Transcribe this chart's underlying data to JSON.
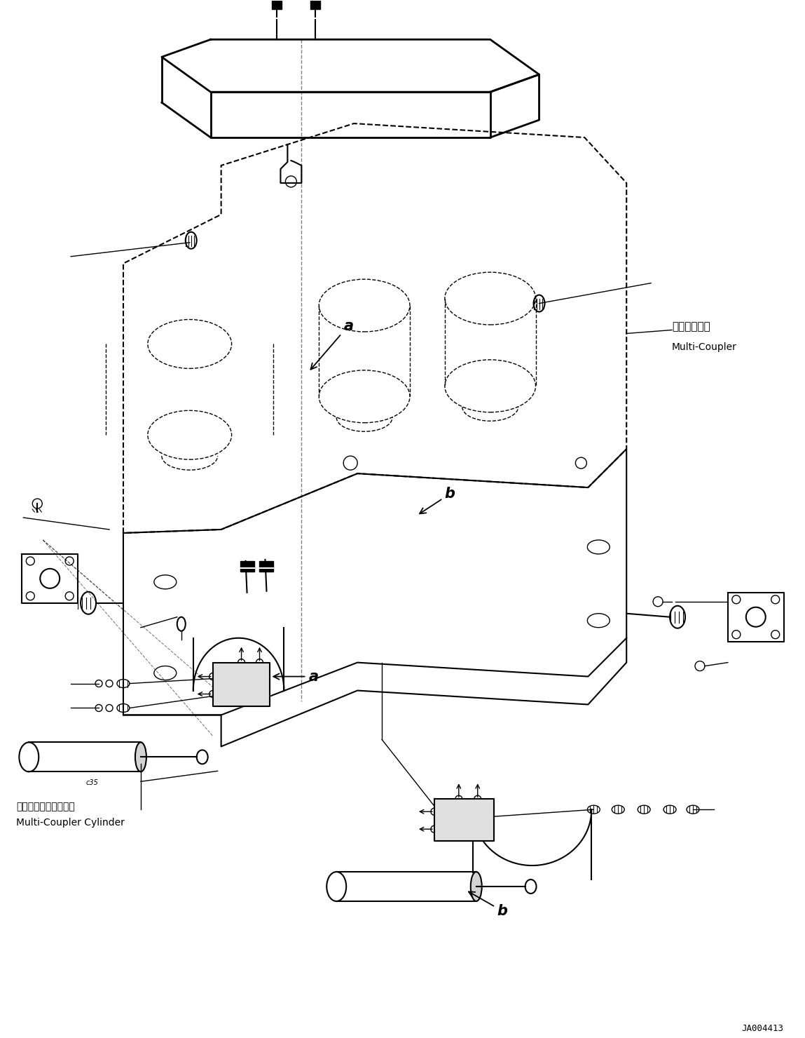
{
  "bg_color": "#ffffff",
  "line_color": "#000000",
  "fig_width": 11.49,
  "fig_height": 14.8,
  "dpi": 100,
  "label_ja_multicoupler": "マルチカプラ",
  "label_en_multicoupler": "Multi-Coupler",
  "label_ja_cylinder": "マルチカプラシリンダ",
  "label_en_cylinder": "Multi-Coupler Cylinder",
  "label_a": "a",
  "label_b": "b",
  "code": "JA004413"
}
